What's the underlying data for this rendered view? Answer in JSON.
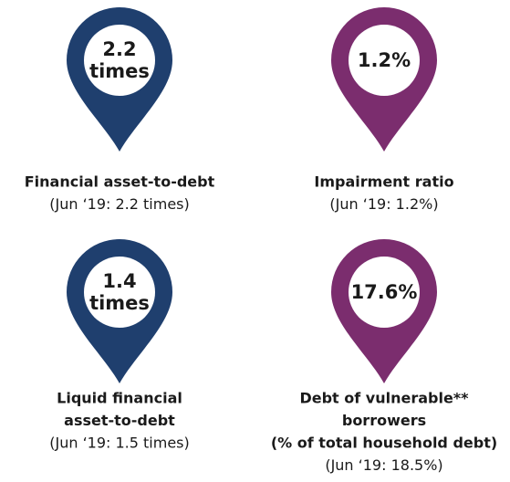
{
  "items": [
    {
      "color": "#1f3f6e",
      "pin_lines": [
        "2.2",
        "times"
      ],
      "label_lines": [
        "Financial asset-to-debt"
      ],
      "note_lines": [
        "(Jun ‘19: 2.2 times)"
      ]
    },
    {
      "color": "#7b2d6e",
      "pin_lines": [
        "1.2%"
      ],
      "label_lines": [
        "Impairment ratio"
      ],
      "note_lines": [
        "(Jun ‘19: 1.2%)"
      ]
    },
    {
      "color": "#1f3f6e",
      "pin_lines": [
        "1.4",
        "times"
      ],
      "label_lines": [
        "Liquid financial",
        "asset-to-debt"
      ],
      "note_lines": [
        "(Jun ‘19: 1.5 times)"
      ]
    },
    {
      "color": "#7b2d6e",
      "pin_lines": [
        "17.6%"
      ],
      "label_lines": [
        "Debt of vulnerable**",
        "borrowers",
        "(% of total household debt)"
      ],
      "note_lines": [
        "(Jun ‘19: 18.5%)"
      ]
    }
  ]
}
